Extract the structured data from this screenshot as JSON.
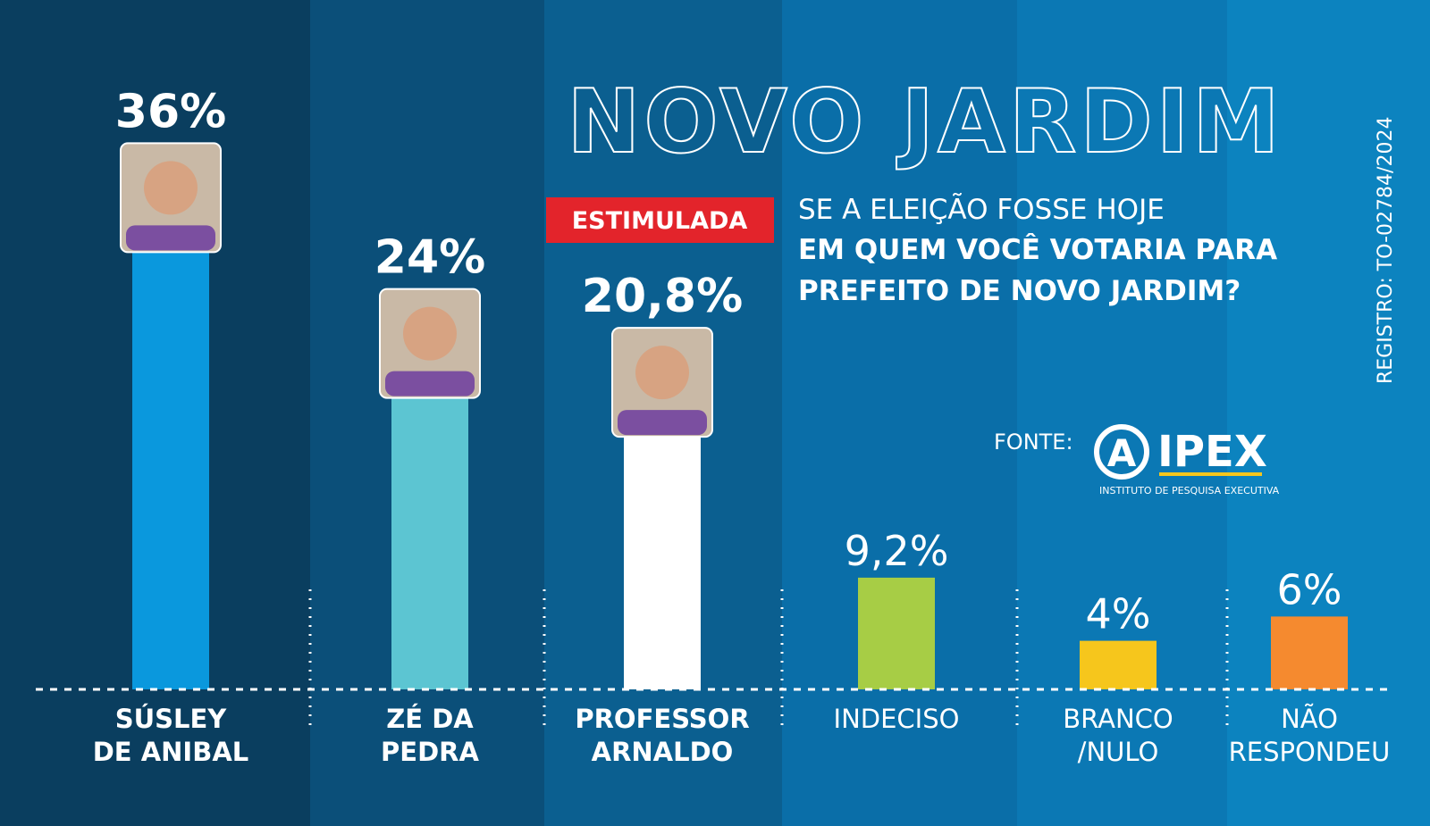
{
  "chart_data": {
    "type": "bar",
    "title": "NOVO JARDIM",
    "badge": "ESTIMULADA",
    "question": [
      "SE A ELEIÇÃO FOSSE HOJE",
      "EM QUEM VOCÊ VOTARIA PARA",
      "PREFEITO DE NOVO JARDIM?"
    ],
    "registration": "REGISTRO: TO-02784/2024",
    "source": {
      "label": "FONTE:",
      "logo_mark": "A",
      "name": "IPEX",
      "full_name": "INSTITUTO DE PESQUISA EXECUTIVA"
    },
    "categories": [
      [
        "SÚSLEY",
        "DE ANIBAL"
      ],
      [
        "ZÉ DA",
        "PEDRA"
      ],
      [
        "PROFESSOR",
        "ARNALDO"
      ],
      [
        "INDECISO"
      ],
      [
        "BRANCO",
        "/NULO"
      ],
      [
        "NÃO",
        "RESPONDEU"
      ]
    ],
    "values": [
      36,
      24,
      20.8,
      9.2,
      4,
      6
    ],
    "value_labels": [
      "36%",
      "24%",
      "20,8%",
      "9,2%",
      "4%",
      "6%"
    ],
    "colors": [
      "#0a98dd",
      "#5cc5d2",
      "#ffffff",
      "#a7cd45",
      "#f6c61c",
      "#f58a2f"
    ]
  }
}
